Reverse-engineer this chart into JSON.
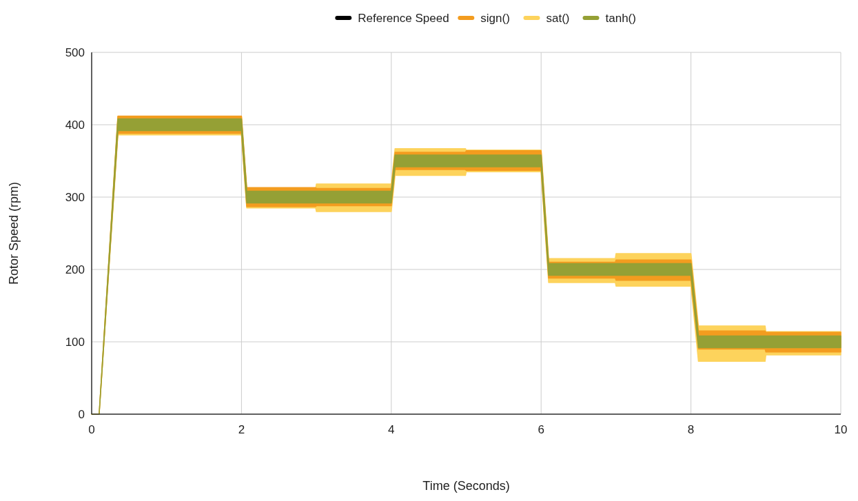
{
  "chart_data": {
    "type": "line",
    "xlabel": "Time (Seconds)",
    "ylabel": "Rotor Speed (rpm)",
    "x": [
      0,
      0.1,
      0.35,
      2,
      2.07,
      2.99,
      3,
      4,
      4.05,
      4.99,
      5,
      6,
      6.1,
      6.99,
      7,
      8,
      8.1,
      8.99,
      9,
      10
    ],
    "xlim": [
      0,
      10
    ],
    "xticks": [
      0,
      2,
      4,
      6,
      8,
      10
    ],
    "ylim": [
      0,
      500
    ],
    "yticks": [
      0,
      100,
      200,
      300,
      400,
      500
    ],
    "grid": true,
    "legend": "top",
    "series": [
      {
        "name": "Reference Speed",
        "color": "#000000",
        "values": [
          null,
          null,
          null,
          null,
          null,
          null,
          null,
          null,
          null,
          null,
          null,
          null,
          null,
          null,
          null,
          null,
          null,
          null,
          null,
          null
        ]
      },
      {
        "name": "sign()",
        "color": "#f39c1f",
        "values": [
          null,
          null,
          null,
          null,
          null,
          null,
          null,
          null,
          null,
          null,
          null,
          null,
          null,
          null,
          null,
          null,
          null,
          null,
          null,
          null
        ],
        "lower": [
          0,
          0,
          388,
          388,
          287,
          287,
          288,
          288,
          338,
          338,
          337,
          337,
          188,
          188,
          185,
          185,
          90,
          90,
          86,
          86
        ],
        "upper": [
          0,
          0,
          412,
          412,
          313,
          313,
          312,
          312,
          362,
          362,
          364,
          364,
          210,
          210,
          213,
          213,
          115,
          115,
          113,
          113
        ]
      },
      {
        "name": "sat()",
        "color": "#fdd35c",
        "values": [
          null,
          null,
          null,
          null,
          null,
          null,
          null,
          null,
          null,
          null,
          null,
          null,
          null,
          null,
          null,
          null,
          null,
          null,
          null,
          null
        ],
        "lower": [
          0,
          0,
          386,
          386,
          285,
          285,
          280,
          280,
          330,
          330,
          335,
          335,
          182,
          182,
          177,
          177,
          73,
          73,
          82,
          82
        ],
        "upper": [
          0,
          0,
          411,
          411,
          312,
          312,
          318,
          318,
          367,
          367,
          365,
          365,
          215,
          215,
          222,
          222,
          122,
          122,
          114,
          114
        ]
      },
      {
        "name": "tanh()",
        "color": "#95a035",
        "values": [
          null,
          null,
          null,
          null,
          null,
          null,
          null,
          null,
          null,
          null,
          null,
          null,
          null,
          null,
          null,
          null,
          null,
          null,
          null,
          null
        ],
        "lower": [
          0,
          0,
          392,
          392,
          292,
          292,
          292,
          292,
          342,
          342,
          342,
          342,
          192,
          192,
          192,
          192,
          92,
          92,
          92,
          92
        ],
        "upper": [
          0,
          0,
          408,
          408,
          308,
          308,
          308,
          308,
          358,
          358,
          358,
          358,
          208,
          208,
          208,
          208,
          108,
          108,
          108,
          108
        ]
      }
    ]
  }
}
